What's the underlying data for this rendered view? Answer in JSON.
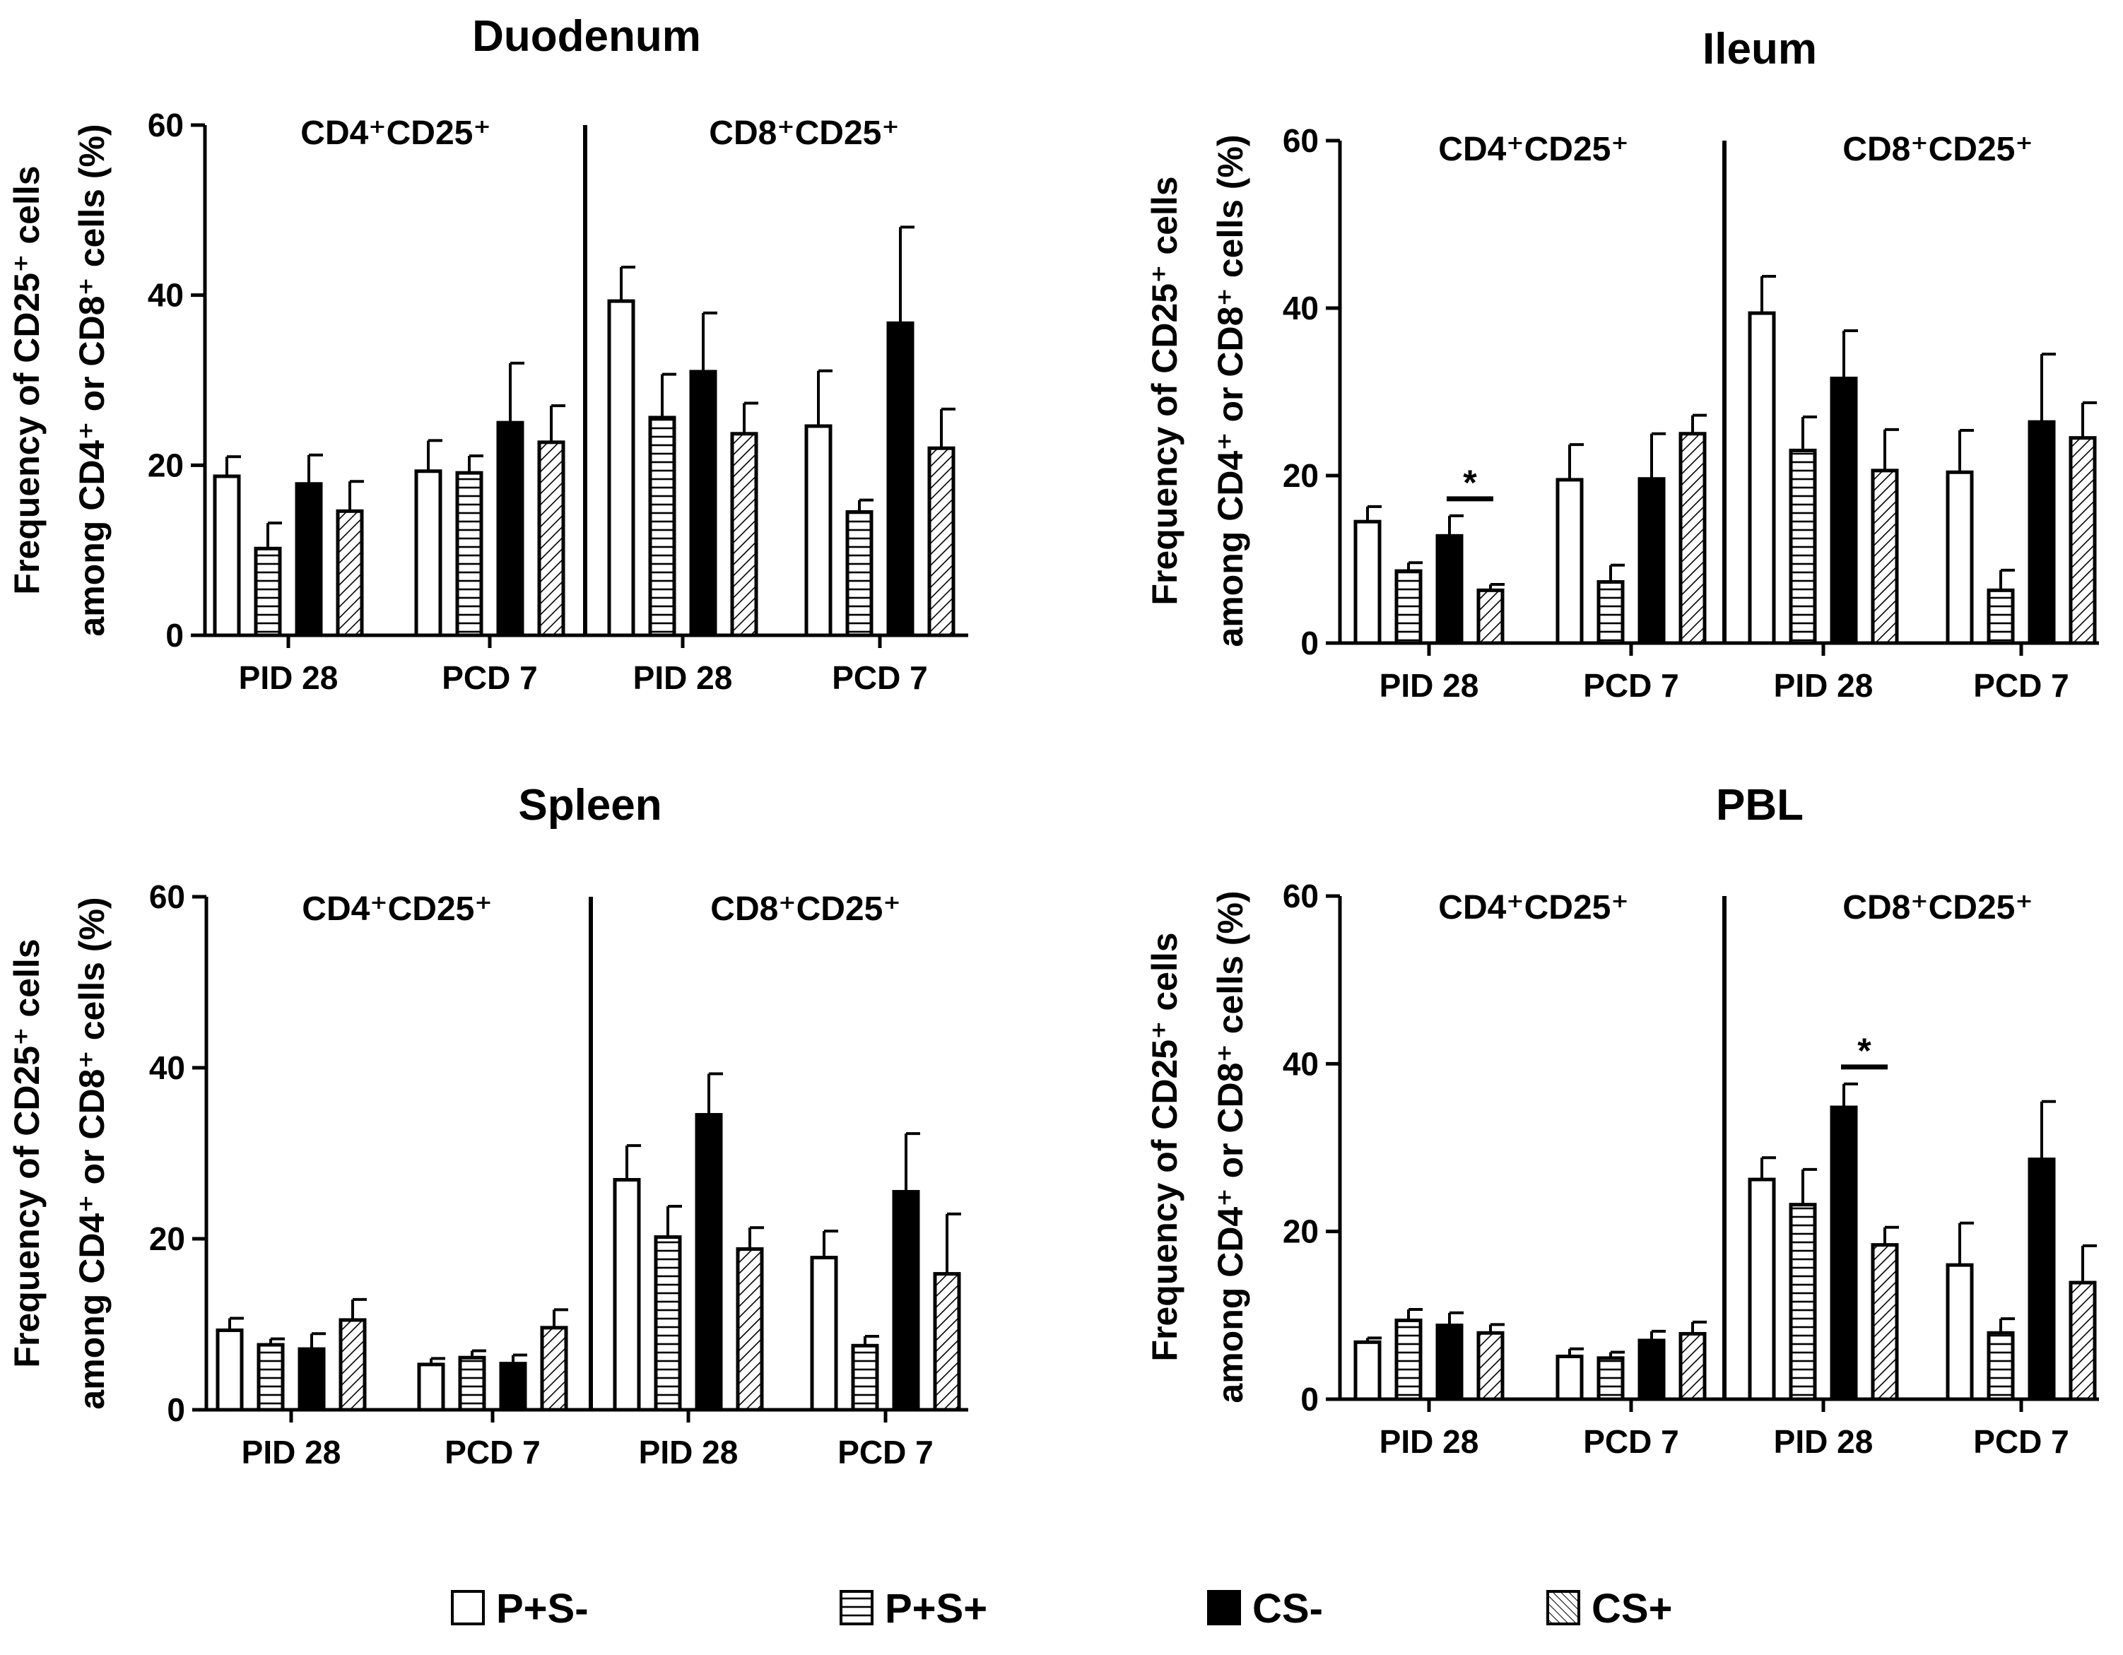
{
  "figure": {
    "legend": [
      "P+S-",
      "P+S+",
      "CS-",
      "CS+"
    ],
    "y_label_line1": "Frequency of CD25⁺ cells",
    "y_label_line2": "among CD4⁺ or CD8⁺ cells (%)",
    "significance_marker": "*"
  },
  "colors": {
    "axis": "#000000",
    "bar_open": "#ffffff",
    "bar_solid": "#000000"
  },
  "chart_data": [
    {
      "type": "bar",
      "title": "Duodenum",
      "ylim": [
        0,
        60
      ],
      "yticks": [
        0,
        20,
        40,
        60
      ],
      "ylabel": "Frequency of CD25⁺ cells among CD4⁺ or CD8⁺ cells (%)",
      "panels": [
        "CD4⁺CD25⁺",
        "CD8⁺CD25⁺"
      ],
      "categories": [
        "PID 28",
        "PCD 7",
        "PID 28",
        "PCD 7"
      ],
      "series": [
        {
          "name": "P+S-",
          "values": [
            18.7,
            19.3,
            39.3,
            24.6
          ],
          "errors": [
            2.3,
            3.6,
            4.0,
            6.5
          ]
        },
        {
          "name": "P+S+",
          "values": [
            10.2,
            19.1,
            25.6,
            14.5
          ],
          "errors": [
            3.0,
            2.0,
            5.1,
            1.4
          ]
        },
        {
          "name": "CS-",
          "values": [
            17.8,
            25.0,
            31.0,
            36.7
          ],
          "errors": [
            3.4,
            7.0,
            6.9,
            11.3
          ]
        },
        {
          "name": "CS+",
          "values": [
            14.6,
            22.7,
            23.7,
            22.0
          ],
          "errors": [
            3.5,
            4.3,
            3.6,
            4.6
          ]
        }
      ],
      "significance": []
    },
    {
      "type": "bar",
      "title": "Ileum",
      "ylim": [
        0,
        60
      ],
      "yticks": [
        0,
        20,
        40,
        60
      ],
      "ylabel": "Frequency of CD25⁺ cells among CD4⁺ or CD8⁺ cells (%)",
      "panels": [
        "CD4⁺CD25⁺",
        "CD8⁺CD25⁺"
      ],
      "categories": [
        "PID 28",
        "PCD 7",
        "PID 28",
        "PCD 7"
      ],
      "series": [
        {
          "name": "P+S-",
          "values": [
            14.5,
            19.5,
            39.4,
            20.4
          ],
          "errors": [
            1.8,
            4.2,
            4.4,
            5.0
          ]
        },
        {
          "name": "P+S+",
          "values": [
            8.6,
            7.3,
            23.0,
            6.3
          ],
          "errors": [
            1.0,
            2.0,
            4.0,
            2.4
          ]
        },
        {
          "name": "CS-",
          "values": [
            12.8,
            19.6,
            31.6,
            26.4
          ],
          "errors": [
            2.4,
            5.4,
            5.7,
            8.1
          ]
        },
        {
          "name": "CS+",
          "values": [
            6.3,
            25.0,
            20.6,
            24.5
          ],
          "errors": [
            0.7,
            2.2,
            4.9,
            4.2
          ]
        }
      ],
      "significance": [
        {
          "category": 0,
          "from": "CS-",
          "to": "CS+",
          "label": "*"
        }
      ]
    },
    {
      "type": "bar",
      "title": "Spleen",
      "ylim": [
        0,
        60
      ],
      "yticks": [
        0,
        20,
        40,
        60
      ],
      "ylabel": "Frequency of CD25⁺ cells among CD4⁺ or CD8⁺ cells (%)",
      "panels": [
        "CD4⁺CD25⁺",
        "CD8⁺CD25⁺"
      ],
      "categories": [
        "PID 28",
        "PCD 7",
        "PID 28",
        "PCD 7"
      ],
      "series": [
        {
          "name": "P+S-",
          "values": [
            9.3,
            5.3,
            26.9,
            17.8
          ],
          "errors": [
            1.4,
            0.7,
            4.0,
            3.1
          ]
        },
        {
          "name": "P+S+",
          "values": [
            7.6,
            6.1,
            20.2,
            7.5
          ],
          "errors": [
            0.7,
            0.8,
            3.6,
            1.1
          ]
        },
        {
          "name": "CS-",
          "values": [
            7.1,
            5.4,
            34.5,
            25.5
          ],
          "errors": [
            1.8,
            1.0,
            4.8,
            6.8
          ]
        },
        {
          "name": "CS+",
          "values": [
            10.5,
            9.6,
            18.8,
            15.9
          ],
          "errors": [
            2.4,
            2.1,
            2.5,
            7.0
          ]
        }
      ],
      "significance": []
    },
    {
      "type": "bar",
      "title": "PBL",
      "ylim": [
        0,
        60
      ],
      "yticks": [
        0,
        20,
        40,
        60
      ],
      "ylabel": "Frequency of CD25⁺ cells among CD4⁺ or CD8⁺ cells (%)",
      "panels": [
        "CD4⁺CD25⁺",
        "CD8⁺CD25⁺"
      ],
      "categories": [
        "PID 28",
        "PCD 7",
        "PID 28",
        "PCD 7"
      ],
      "series": [
        {
          "name": "P+S-",
          "values": [
            6.8,
            5.1,
            26.2,
            16.0
          ],
          "errors": [
            0.5,
            0.9,
            2.6,
            5.0
          ]
        },
        {
          "name": "P+S+",
          "values": [
            9.4,
            4.9,
            23.2,
            7.9
          ],
          "errors": [
            1.3,
            0.7,
            4.2,
            1.7
          ]
        },
        {
          "name": "CS-",
          "values": [
            8.8,
            7.0,
            34.8,
            28.6
          ],
          "errors": [
            1.5,
            1.1,
            2.8,
            6.9
          ]
        },
        {
          "name": "CS+",
          "values": [
            7.9,
            7.8,
            18.4,
            13.9
          ],
          "errors": [
            1.0,
            1.4,
            2.1,
            4.4
          ]
        }
      ],
      "significance": [
        {
          "category": 2,
          "from": "CS-",
          "to": "CS+",
          "label": "*"
        }
      ]
    }
  ]
}
